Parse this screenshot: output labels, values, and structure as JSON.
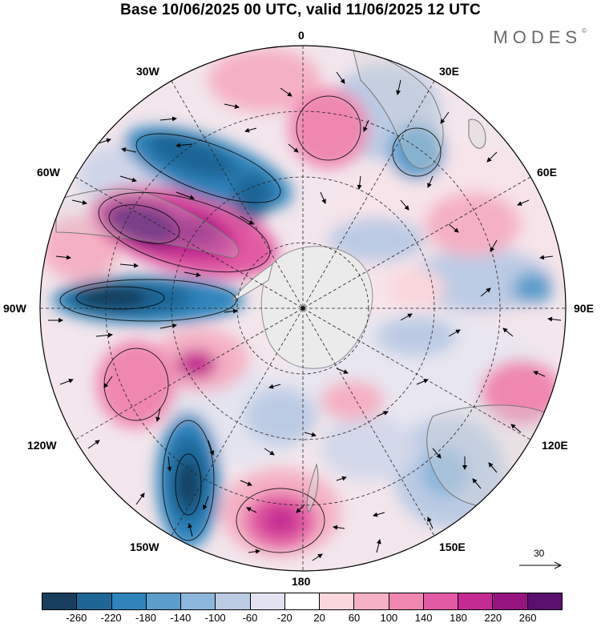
{
  "title": "Base 10/06/2025 00 UTC, valid 11/06/2025 12 UTC",
  "brand": "MODES",
  "brand_mark": "©",
  "longitude_labels": {
    "top": "0",
    "bottom": "180",
    "left": "90W",
    "right": "90E",
    "upper_left": "30W",
    "upper_right": "30E",
    "mid_left": "60W",
    "mid_right": "60E",
    "lower_left": "120W",
    "lower_right": "120E",
    "bottom_left": "150W",
    "bottom_right": "150E"
  },
  "reference_vector_label": "30",
  "colorbar": {
    "colors": [
      "#173e5c",
      "#1f6596",
      "#2f84bc",
      "#5b9ecc",
      "#8db6db",
      "#bccbe4",
      "#e2e2f0",
      "#ffffff",
      "#f9d7dc",
      "#f5b1c4",
      "#ef87b0",
      "#e25aa3",
      "#c42b92",
      "#96147f",
      "#5a0f6e"
    ],
    "tick_labels": [
      "-260",
      "-220",
      "-180",
      "-140",
      "-100",
      "-60",
      "-20",
      "20",
      "60",
      "100",
      "140",
      "180",
      "220",
      "260"
    ]
  }
}
